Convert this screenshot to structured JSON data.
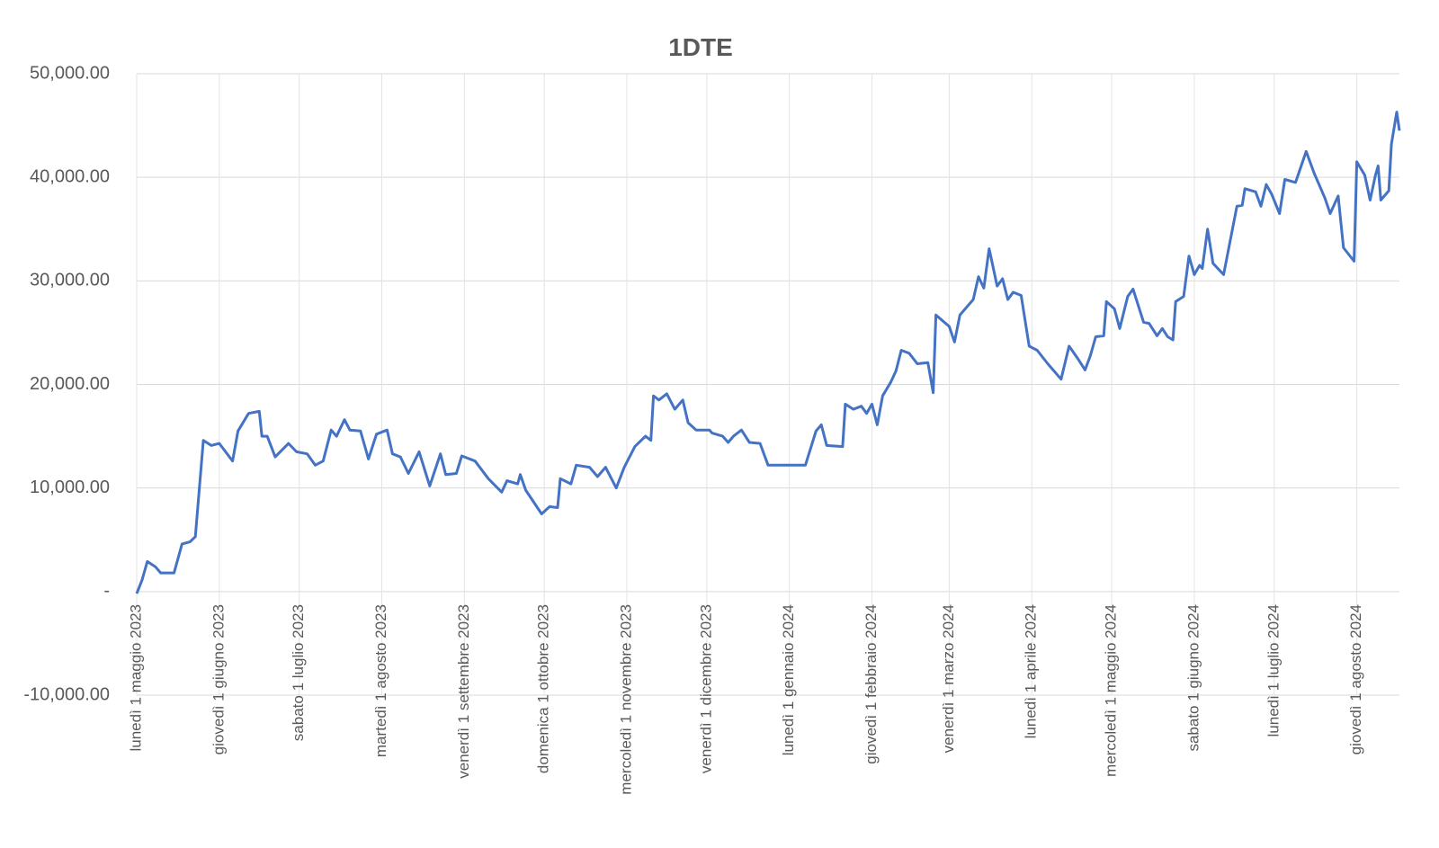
{
  "chart_data": {
    "type": "line",
    "title": "1DTE",
    "color": "#4472c4",
    "grid": true,
    "ylim": [
      -10000,
      50000
    ],
    "yticks": [
      {
        "value": -10000,
        "label": "-10,000.00"
      },
      {
        "value": 0,
        "label": "-"
      },
      {
        "value": 10000,
        "label": "10,000.00"
      },
      {
        "value": 20000,
        "label": "20,000.00"
      },
      {
        "value": 30000,
        "label": "30,000.00"
      },
      {
        "value": 40000,
        "label": "40,000.00"
      },
      {
        "value": 50000,
        "label": "50,000.00"
      }
    ],
    "xlim": [
      "2023-05-01",
      "2024-08-17"
    ],
    "xticks": [
      {
        "value": "2023-05-01",
        "label": "lunedì 1 maggio 2023"
      },
      {
        "value": "2023-06-01",
        "label": "giovedì 1 giugno 2023"
      },
      {
        "value": "2023-07-01",
        "label": "sabato 1 luglio 2023"
      },
      {
        "value": "2023-08-01",
        "label": "martedì 1 agosto 2023"
      },
      {
        "value": "2023-09-01",
        "label": "venerdì 1 settembre 2023"
      },
      {
        "value": "2023-10-01",
        "label": "domenica 1 ottobre 2023"
      },
      {
        "value": "2023-11-01",
        "label": "mercoledì 1 novembre 2023"
      },
      {
        "value": "2023-12-01",
        "label": "venerdì 1 dicembre 2023"
      },
      {
        "value": "2024-01-01",
        "label": "lunedì 1 gennaio 2024"
      },
      {
        "value": "2024-02-01",
        "label": "giovedì 1 febbraio 2024"
      },
      {
        "value": "2024-03-01",
        "label": "venerdì 1 marzo 2024"
      },
      {
        "value": "2024-04-01",
        "label": "lunedì 1 aprile 2024"
      },
      {
        "value": "2024-05-01",
        "label": "mercoledì 1 maggio 2024"
      },
      {
        "value": "2024-06-01",
        "label": "sabato 1 giugno 2024"
      },
      {
        "value": "2024-07-01",
        "label": "lunedì 1 luglio 2024"
      },
      {
        "value": "2024-08-01",
        "label": "giovedì 1 agosto 2024"
      }
    ],
    "x": [
      "2023-05-01",
      "2023-05-03",
      "2023-05-05",
      "2023-05-08",
      "2023-05-10",
      "2023-05-15",
      "2023-05-18",
      "2023-05-21",
      "2023-05-23",
      "2023-05-26",
      "2023-05-29",
      "2023-06-01",
      "2023-06-06",
      "2023-06-08",
      "2023-06-12",
      "2023-06-16",
      "2023-06-17",
      "2023-06-19",
      "2023-06-22",
      "2023-06-27",
      "2023-06-30",
      "2023-07-04",
      "2023-07-07",
      "2023-07-10",
      "2023-07-13",
      "2023-07-15",
      "2023-07-18",
      "2023-07-20",
      "2023-07-24",
      "2023-07-27",
      "2023-07-30",
      "2023-08-03",
      "2023-08-05",
      "2023-08-08",
      "2023-08-11",
      "2023-08-15",
      "2023-08-19",
      "2023-08-23",
      "2023-08-25",
      "2023-08-29",
      "2023-08-31",
      "2023-09-05",
      "2023-09-10",
      "2023-09-15",
      "2023-09-17",
      "2023-09-21",
      "2023-09-22",
      "2023-09-24",
      "2023-09-30",
      "2023-10-03",
      "2023-10-06",
      "2023-10-07",
      "2023-10-11",
      "2023-10-13",
      "2023-10-18",
      "2023-10-21",
      "2023-10-24",
      "2023-10-28",
      "2023-10-31",
      "2023-11-04",
      "2023-11-08",
      "2023-11-10",
      "2023-11-11",
      "2023-11-13",
      "2023-11-16",
      "2023-11-19",
      "2023-11-22",
      "2023-11-24",
      "2023-11-27",
      "2023-12-02",
      "2023-12-03",
      "2023-12-07",
      "2023-12-09",
      "2023-12-11",
      "2023-12-14",
      "2023-12-17",
      "2023-12-21",
      "2023-12-24",
      "2024-01-07",
      "2024-01-11",
      "2024-01-13",
      "2024-01-15",
      "2024-01-21",
      "2024-01-22",
      "2024-01-25",
      "2024-01-28",
      "2024-01-30",
      "2024-02-01",
      "2024-02-03",
      "2024-02-05",
      "2024-02-08",
      "2024-02-10",
      "2024-02-12",
      "2024-02-15",
      "2024-02-18",
      "2024-02-22",
      "2024-02-24",
      "2024-02-25",
      "2024-03-01",
      "2024-03-03",
      "2024-03-05",
      "2024-03-10",
      "2024-03-12",
      "2024-03-14",
      "2024-03-16",
      "2024-03-17",
      "2024-03-19",
      "2024-03-21",
      "2024-03-23",
      "2024-03-25",
      "2024-03-28",
      "2024-03-31",
      "2024-04-03",
      "2024-04-07",
      "2024-04-12",
      "2024-04-15",
      "2024-04-18",
      "2024-04-21",
      "2024-04-23",
      "2024-04-25",
      "2024-04-28",
      "2024-04-29",
      "2024-05-02",
      "2024-05-04",
      "2024-05-07",
      "2024-05-09",
      "2024-05-13",
      "2024-05-15",
      "2024-05-18",
      "2024-05-20",
      "2024-05-22",
      "2024-05-24",
      "2024-05-25",
      "2024-05-28",
      "2024-05-30",
      "2024-06-01",
      "2024-06-03",
      "2024-06-04",
      "2024-06-06",
      "2024-06-08",
      "2024-06-12",
      "2024-06-17",
      "2024-06-19",
      "2024-06-20",
      "2024-06-24",
      "2024-06-26",
      "2024-06-28",
      "2024-06-30",
      "2024-07-03",
      "2024-07-05",
      "2024-07-09",
      "2024-07-13",
      "2024-07-16",
      "2024-07-20",
      "2024-07-22",
      "2024-07-25",
      "2024-07-27",
      "2024-07-31",
      "2024-08-01",
      "2024-08-04",
      "2024-08-06",
      "2024-08-08",
      "2024-08-09",
      "2024-08-10",
      "2024-08-13",
      "2024-08-14",
      "2024-08-16",
      "2024-08-17"
    ],
    "values": [
      -200,
      1100,
      2900,
      2400,
      1800,
      1800,
      4600,
      4800,
      5300,
      14600,
      14100,
      14300,
      12600,
      15500,
      17200,
      17400,
      15000,
      15000,
      13000,
      14300,
      13500,
      13300,
      12200,
      12600,
      15600,
      15000,
      16600,
      15600,
      15500,
      12800,
      15200,
      15600,
      13300,
      13000,
      11400,
      13500,
      10200,
      13300,
      11300,
      11400,
      13100,
      12600,
      10900,
      9600,
      10700,
      10400,
      11300,
      9800,
      7500,
      8200,
      8100,
      10900,
      10400,
      12200,
      12000,
      11100,
      12000,
      10000,
      12000,
      14000,
      15000,
      14600,
      18900,
      18500,
      19100,
      17600,
      18500,
      16300,
      15600,
      15600,
      15300,
      15000,
      14400,
      15000,
      15600,
      14400,
      14300,
      12200,
      12200,
      15500,
      16100,
      14100,
      14000,
      18100,
      17600,
      17900,
      17200,
      18100,
      16100,
      18900,
      20200,
      21300,
      23300,
      23000,
      22000,
      22100,
      19200,
      26700,
      25600,
      24100,
      26700,
      28200,
      30400,
      29300,
      33100,
      31900,
      29500,
      30200,
      28200,
      28900,
      28600,
      23700,
      23300,
      22000,
      20500,
      23700,
      22600,
      21400,
      22800,
      24600,
      24700,
      28000,
      27300,
      25400,
      28500,
      29200,
      26000,
      25900,
      24700,
      25400,
      24600,
      24300,
      28000,
      28500,
      32400,
      30600,
      31500,
      31200,
      35000,
      31700,
      30600,
      37200,
      37300,
      38900,
      38600,
      37200,
      39300,
      38400,
      36500,
      39800,
      39500,
      42500,
      40400,
      38000,
      36500,
      38200,
      33200,
      31900,
      41500,
      40200,
      37800,
      40200,
      41100,
      37800,
      38700,
      43200,
      46300,
      44500
    ]
  }
}
